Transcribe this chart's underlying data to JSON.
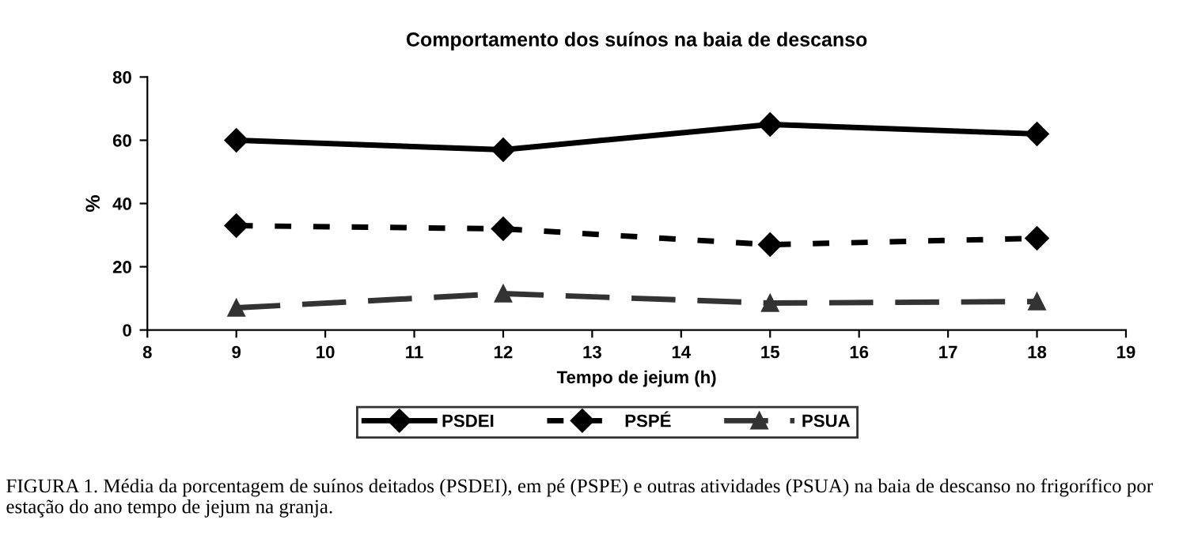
{
  "chart_data": {
    "type": "line",
    "title": "Comportamento dos suínos na baia de descanso",
    "xlabel": "Tempo de jejum (h)",
    "ylabel": "%",
    "x": [
      9,
      12,
      15,
      18
    ],
    "series": [
      {
        "name": "PSDEI",
        "color": "#000000",
        "values": [
          60,
          57,
          65,
          62
        ],
        "marker": "diamond",
        "line_style": "solid"
      },
      {
        "name": "PSPÉ",
        "color": "#000000",
        "values": [
          33,
          32,
          27,
          29
        ],
        "marker": "diamond",
        "line_style": "dotted"
      },
      {
        "name": "PSUA",
        "color": "#333333",
        "values": [
          7,
          11.5,
          8.5,
          9
        ],
        "marker": "triangle",
        "line_style": "dashed"
      }
    ],
    "xlim": [
      8,
      19
    ],
    "xticks": [
      8,
      9,
      10,
      11,
      12,
      13,
      14,
      15,
      16,
      17,
      18,
      19
    ],
    "ylim": [
      0,
      80
    ],
    "yticks": [
      0,
      20,
      40,
      60,
      80
    ],
    "grid": false,
    "legend": "bottom",
    "annotations": [
      "FIGURA 1. Média da porcentagem de suínos deitados (PSDEI), em pé (PSPE) e outras atividades (PSUA) na baia de descanso no frigorífico por estação do ano tempo de jejum na granja."
    ]
  }
}
